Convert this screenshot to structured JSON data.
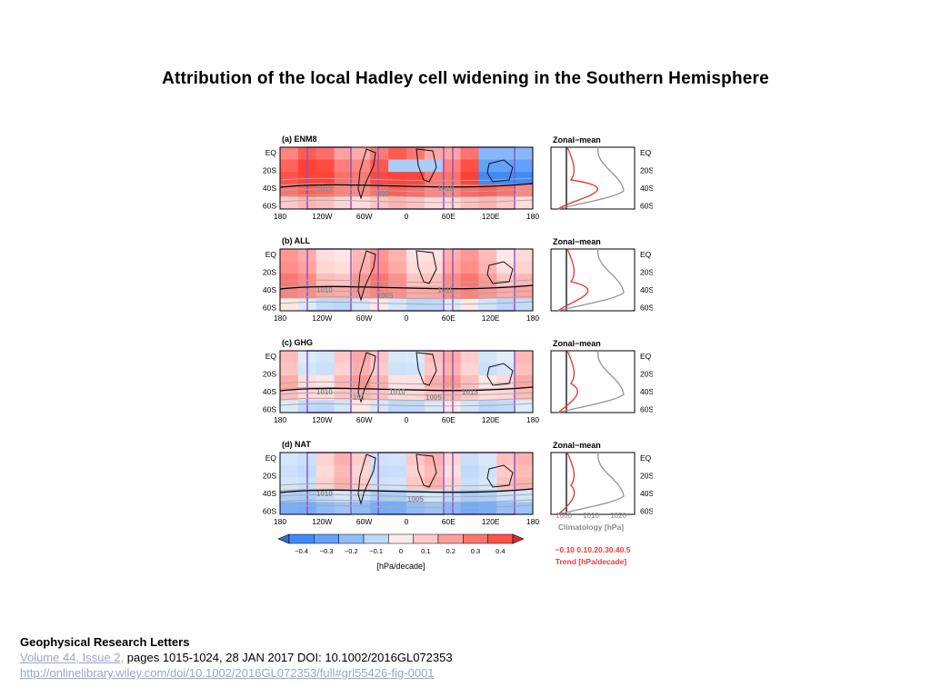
{
  "slide": {
    "title": "Attribution of the local Hadley cell widening in the Southern Hemisphere"
  },
  "figure": {
    "panels": [
      {
        "label": "(a) ENM8",
        "zonal_title": "Zonal−mean",
        "contour_labels": [
          "1010",
          "995",
          "1010"
        ]
      },
      {
        "label": "(b) ALL",
        "zonal_title": "Zonal−mean",
        "contour_labels": [
          "1010",
          "1005",
          "1015"
        ]
      },
      {
        "label": "(c) GHG",
        "zonal_title": "Zonal−mean",
        "contour_labels": [
          "1010",
          "101",
          "1010",
          "1005",
          "1015"
        ]
      },
      {
        "label": "(d) NAT",
        "zonal_title": "Zonal−mean",
        "contour_labels": [
          "1010",
          "1005"
        ]
      }
    ],
    "lat_ticks": [
      "EQ",
      "20S",
      "40S",
      "60S"
    ],
    "lon_ticks": [
      "180",
      "120W",
      "60W",
      "0",
      "60E",
      "120E",
      "180"
    ],
    "colorbar_ticks": [
      "−0.4",
      "−0.3",
      "−0.2",
      "−0.1",
      "0",
      "0.1",
      "0.2",
      "0.3",
      "0.4"
    ],
    "colorbar_label": "[hPa/decade]",
    "climatology_ticks": [
      "1000",
      "1010",
      "1020"
    ],
    "climatology_label": "Climatology [hPa]",
    "trend_ticks": "−0.10  0.10.20.30.40.5",
    "trend_label": "Trend [hPa/decade]",
    "colors": {
      "negative": "#3b7fd6",
      "positive": "#d73a35",
      "climatology_line": "#9a9a9a",
      "trend_line": "#e0403a",
      "box_purple": "#8a4fc9"
    }
  },
  "footer": {
    "journal": "Geophysical Research Letters",
    "volume_link": "Volume 44, Issue 2,",
    "pages_text": " pages 1015-1024, 28 JAN 2017 DOI: 10.1002/2016GL072353",
    "url": "http://onlinelibrary.wiley.com/doi/10.1002/2016GL072353/full#grl55426-fig-0001"
  }
}
